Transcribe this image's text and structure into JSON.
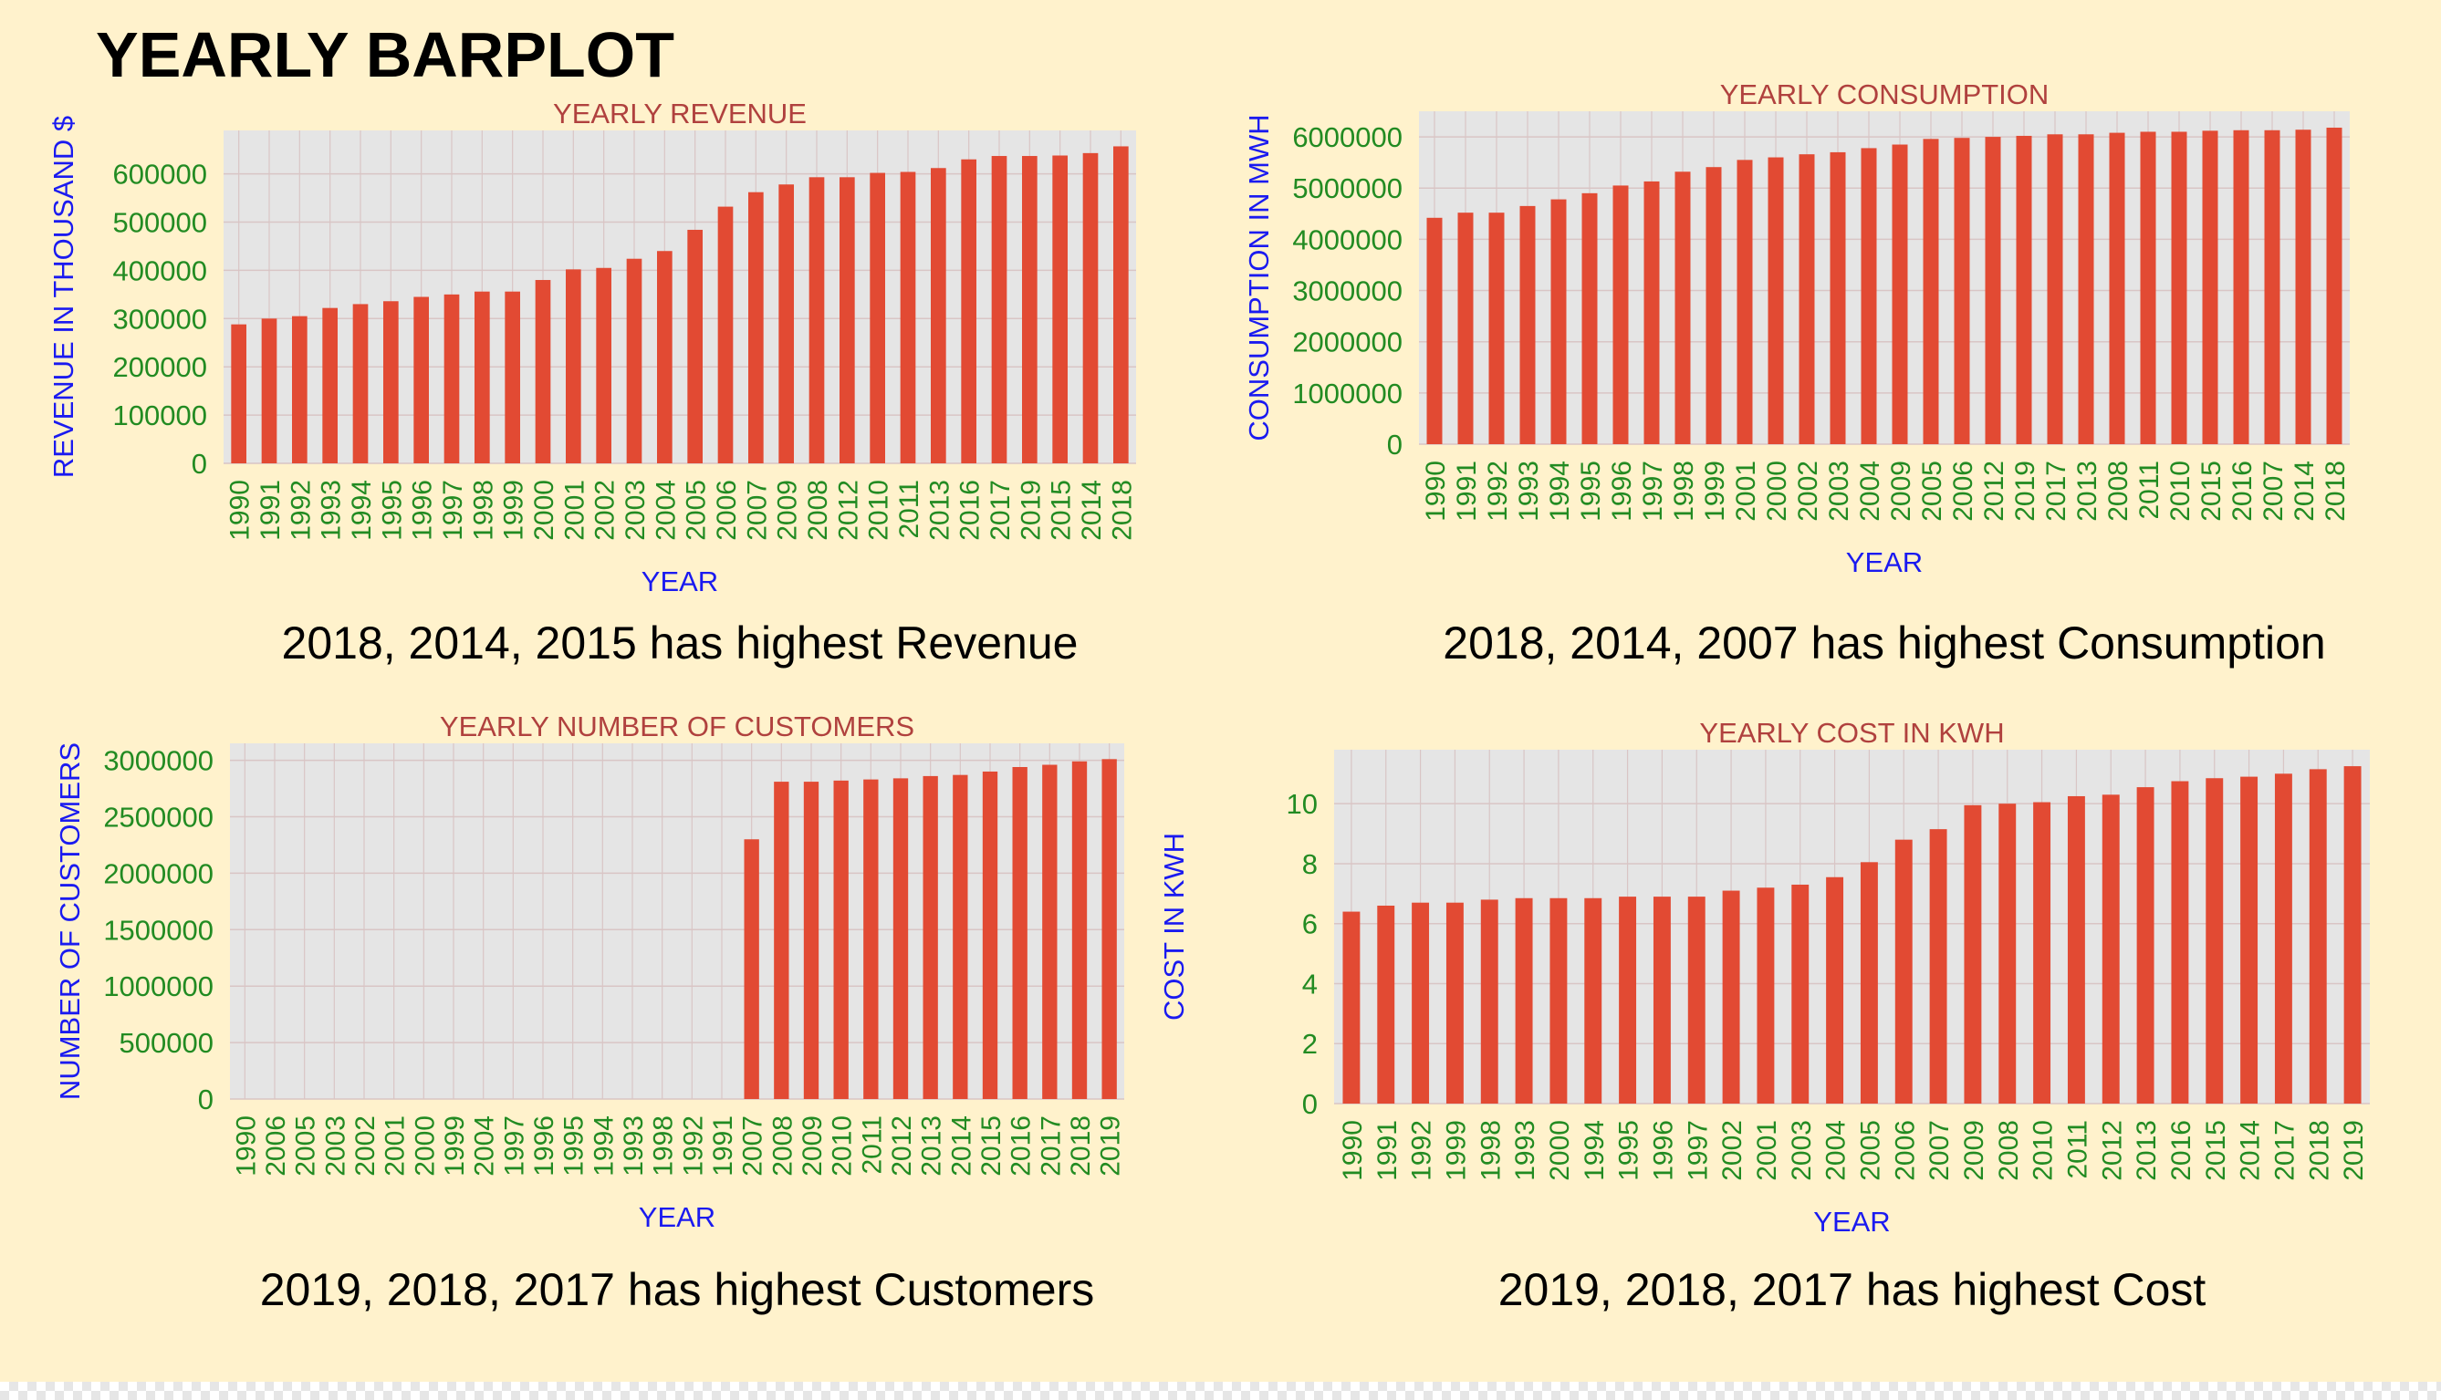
{
  "page": {
    "title": "YEARLY BARPLOT"
  },
  "colors": {
    "background": "#fff2cc",
    "plot_bg": "#e5e5e5",
    "grid": "#d9c5c5",
    "bar": "#e24a33",
    "title": "#b0413e",
    "ylabel": "#1a1af0",
    "ticks": "#228b22"
  },
  "captions": {
    "revenue": "2018, 2014, 2015 has highest Revenue",
    "consumption": "2018, 2014, 2007 has highest Consumption",
    "customers": "2019, 2018, 2017 has highest Customers",
    "cost": "2019, 2018, 2017 has highest Cost"
  },
  "chart_data": [
    {
      "id": "revenue",
      "type": "bar",
      "title": "YEARLY REVENUE",
      "xlabel": "YEAR",
      "ylabel": "REVENUE IN THOUSAND $",
      "ylim": [
        0,
        690000
      ],
      "yticks": [
        0,
        100000,
        200000,
        300000,
        400000,
        500000,
        600000
      ],
      "ytick_labels": [
        "0",
        "100000",
        "200000",
        "300000",
        "400000",
        "500000",
        "600000"
      ],
      "grid": true,
      "categories": [
        "1990",
        "1991",
        "1992",
        "1993",
        "1994",
        "1995",
        "1996",
        "1997",
        "1998",
        "1999",
        "2000",
        "2001",
        "2002",
        "2003",
        "2004",
        "2005",
        "2006",
        "2007",
        "2009",
        "2008",
        "2012",
        "2010",
        "2011",
        "2013",
        "2016",
        "2017",
        "2019",
        "2015",
        "2014",
        "2018"
      ],
      "values": [
        288000,
        300000,
        305000,
        322000,
        330000,
        336000,
        345000,
        350000,
        356000,
        356000,
        380000,
        402000,
        405000,
        424000,
        440000,
        484000,
        532000,
        562000,
        578000,
        593000,
        593000,
        602000,
        604000,
        612000,
        630000,
        637000,
        637000,
        638000,
        643000,
        657000
      ]
    },
    {
      "id": "consumption",
      "type": "bar",
      "title": "YEARLY CONSUMPTION",
      "xlabel": "YEAR",
      "ylabel": "CONSUMPTION IN MWH",
      "ylim": [
        0,
        6500000
      ],
      "yticks": [
        0,
        1000000,
        2000000,
        3000000,
        4000000,
        5000000,
        6000000
      ],
      "ytick_labels": [
        "0",
        "1000000",
        "2000000",
        "3000000",
        "4000000",
        "5000000",
        "6000000"
      ],
      "grid": true,
      "categories": [
        "1990",
        "1991",
        "1992",
        "1993",
        "1994",
        "1995",
        "1996",
        "1997",
        "1998",
        "1999",
        "2001",
        "2000",
        "2002",
        "2003",
        "2004",
        "2009",
        "2005",
        "2006",
        "2012",
        "2019",
        "2017",
        "2013",
        "2008",
        "2011",
        "2010",
        "2015",
        "2016",
        "2007",
        "2014",
        "2018"
      ],
      "values": [
        4420000,
        4520000,
        4520000,
        4650000,
        4780000,
        4900000,
        5050000,
        5130000,
        5320000,
        5410000,
        5550000,
        5600000,
        5660000,
        5700000,
        5780000,
        5850000,
        5960000,
        5980000,
        6000000,
        6020000,
        6050000,
        6050000,
        6080000,
        6100000,
        6100000,
        6120000,
        6130000,
        6130000,
        6140000,
        6180000
      ]
    },
    {
      "id": "customers",
      "type": "bar",
      "title": "YEARLY NUMBER OF CUSTOMERS",
      "xlabel": "YEAR",
      "ylabel": "NUMBER OF CUSTOMERS",
      "ylim": [
        0,
        3150000
      ],
      "yticks": [
        0,
        500000,
        1000000,
        1500000,
        2000000,
        2500000,
        3000000
      ],
      "ytick_labels": [
        "0",
        "500000",
        "1000000",
        "1500000",
        "2000000",
        "2500000",
        "3000000"
      ],
      "grid": true,
      "categories": [
        "1990",
        "2006",
        "2005",
        "2003",
        "2002",
        "2001",
        "2000",
        "1999",
        "2004",
        "1997",
        "1996",
        "1995",
        "1994",
        "1993",
        "1998",
        "1992",
        "1991",
        "2007",
        "2008",
        "2009",
        "2010",
        "2011",
        "2012",
        "2013",
        "2014",
        "2015",
        "2016",
        "2017",
        "2018",
        "2019"
      ],
      "values": [
        0,
        0,
        0,
        0,
        0,
        0,
        0,
        0,
        0,
        0,
        0,
        0,
        0,
        0,
        0,
        0,
        0,
        2300000,
        2810000,
        2810000,
        2820000,
        2830000,
        2840000,
        2860000,
        2870000,
        2900000,
        2940000,
        2960000,
        2990000,
        3010000
      ]
    },
    {
      "id": "cost",
      "type": "bar",
      "title": "YEARLY COST IN KWH",
      "xlabel": "YEAR",
      "ylabel": "COST IN KWH",
      "ylim": [
        0,
        11.8
      ],
      "yticks": [
        0,
        2,
        4,
        6,
        8,
        10
      ],
      "ytick_labels": [
        "0",
        "2",
        "4",
        "6",
        "8",
        "10"
      ],
      "grid": true,
      "categories": [
        "1990",
        "1991",
        "1992",
        "1999",
        "1998",
        "1993",
        "2000",
        "1994",
        "1995",
        "1996",
        "1997",
        "2002",
        "2001",
        "2003",
        "2004",
        "2005",
        "2006",
        "2007",
        "2009",
        "2008",
        "2010",
        "2011",
        "2012",
        "2013",
        "2016",
        "2015",
        "2014",
        "2017",
        "2018",
        "2019"
      ],
      "values": [
        6.4,
        6.6,
        6.7,
        6.7,
        6.8,
        6.85,
        6.85,
        6.85,
        6.9,
        6.9,
        6.9,
        7.1,
        7.2,
        7.3,
        7.55,
        8.05,
        8.8,
        9.15,
        9.95,
        10.0,
        10.05,
        10.25,
        10.3,
        10.55,
        10.75,
        10.85,
        10.9,
        11.0,
        11.15,
        11.25
      ]
    }
  ]
}
